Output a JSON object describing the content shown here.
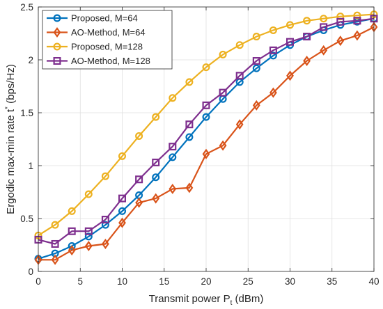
{
  "chart_data": {
    "type": "line",
    "title": "",
    "xlabel": "Transmit power P",
    "xlabel_sub": "t",
    "xlabel_unit": " (dBm)",
    "ylabel": "Ergodic max-min rate t",
    "ylabel_sup": "*",
    "ylabel_unit": " (bps/Hz)",
    "xlim": [
      0,
      40
    ],
    "ylim": [
      0,
      2.5
    ],
    "xticks": [
      "0",
      "5",
      "10",
      "15",
      "20",
      "25",
      "30",
      "35",
      "40"
    ],
    "yticks": [
      "0",
      "0.5",
      "1",
      "1.5",
      "2",
      "2.5"
    ],
    "grid": true,
    "legend_position": "top-left",
    "x": [
      0,
      2,
      4,
      6,
      8,
      10,
      12,
      14,
      16,
      18,
      20,
      22,
      24,
      26,
      28,
      30,
      32,
      34,
      36,
      38,
      40
    ],
    "series": [
      {
        "name": "Proposed, M=64",
        "color": "#0072BD",
        "marker": "circle",
        "values": [
          0.12,
          0.17,
          0.24,
          0.33,
          0.44,
          0.57,
          0.72,
          0.89,
          1.08,
          1.27,
          1.46,
          1.63,
          1.79,
          1.92,
          2.04,
          2.14,
          2.22,
          2.28,
          2.33,
          2.36,
          2.39
        ]
      },
      {
        "name": "AO-Method, M=64",
        "color": "#D95319",
        "marker": "diamond",
        "values": [
          0.11,
          0.11,
          0.2,
          0.24,
          0.26,
          0.46,
          0.65,
          0.69,
          0.78,
          0.79,
          1.11,
          1.19,
          1.39,
          1.57,
          1.69,
          1.85,
          1.99,
          2.09,
          2.18,
          2.23,
          2.31
        ]
      },
      {
        "name": "Proposed, M=128",
        "color": "#EDB120",
        "marker": "circle",
        "values": [
          0.34,
          0.44,
          0.57,
          0.73,
          0.9,
          1.09,
          1.28,
          1.46,
          1.64,
          1.79,
          1.93,
          2.05,
          2.14,
          2.22,
          2.28,
          2.33,
          2.37,
          2.39,
          2.41,
          2.42,
          2.43
        ]
      },
      {
        "name": "AO-Method, M=128",
        "color": "#7E2F8E",
        "marker": "square",
        "values": [
          0.3,
          0.26,
          0.38,
          0.38,
          0.49,
          0.69,
          0.87,
          1.03,
          1.18,
          1.39,
          1.57,
          1.69,
          1.85,
          1.99,
          2.09,
          2.17,
          2.22,
          2.31,
          2.36,
          2.37,
          2.39
        ]
      }
    ]
  }
}
